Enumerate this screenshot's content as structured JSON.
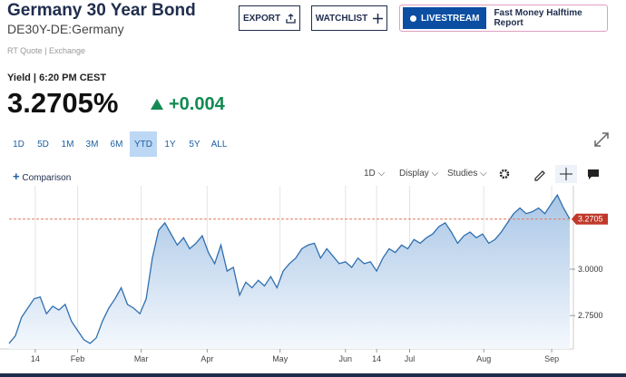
{
  "header": {
    "title": "Germany 30 Year Bond",
    "symbol": "DE30Y-DE:Germany",
    "source": "RT Quote | Exchange"
  },
  "buttons": {
    "export": "EXPORT",
    "watchlist": "WATCHLIST",
    "livestream": "LIVESTREAM",
    "show": "Fast Money Halftime Report"
  },
  "quote": {
    "label": "Yield | 6:20 PM CEST",
    "last": "3.2705%",
    "change": "+0.004"
  },
  "ranges": [
    "1D",
    "5D",
    "1M",
    "3M",
    "6M",
    "YTD",
    "1Y",
    "5Y",
    "ALL"
  ],
  "toolbar": {
    "comparison": "Comparison",
    "interval": "1D",
    "display": "Display",
    "studies": "Studies"
  },
  "chart_data": {
    "type": "area",
    "color": "#2f6fb0",
    "values": [
      2.6,
      2.64,
      2.74,
      2.79,
      2.84,
      2.85,
      2.76,
      2.8,
      2.78,
      2.81,
      2.72,
      2.67,
      2.62,
      2.6,
      2.63,
      2.72,
      2.79,
      2.84,
      2.9,
      2.81,
      2.79,
      2.76,
      2.84,
      3.06,
      3.21,
      3.25,
      3.19,
      3.13,
      3.17,
      3.11,
      3.14,
      3.18,
      3.09,
      3.03,
      3.13,
      2.99,
      3.01,
      2.86,
      2.93,
      2.9,
      2.94,
      2.91,
      2.96,
      2.9,
      2.99,
      3.03,
      3.06,
      3.11,
      3.13,
      3.14,
      3.06,
      3.11,
      3.07,
      3.03,
      3.04,
      3.01,
      3.06,
      3.03,
      3.04,
      2.99,
      3.06,
      3.11,
      3.09,
      3.13,
      3.11,
      3.16,
      3.14,
      3.17,
      3.19,
      3.23,
      3.25,
      3.2,
      3.14,
      3.18,
      3.2,
      3.17,
      3.19,
      3.14,
      3.16,
      3.2,
      3.25,
      3.3,
      3.33,
      3.3,
      3.31,
      3.33,
      3.3,
      3.35,
      3.4,
      3.33,
      3.2705
    ],
    "xlim": [
      0,
      90
    ],
    "xticks": [
      {
        "value": 4.2,
        "label": "14"
      },
      {
        "value": 11,
        "label": "Feb"
      },
      {
        "value": 21.2,
        "label": "Mar"
      },
      {
        "value": 31.8,
        "label": "Apr"
      },
      {
        "value": 43.5,
        "label": "May"
      },
      {
        "value": 54,
        "label": "Jun"
      },
      {
        "value": 59,
        "label": "14"
      },
      {
        "value": 64.3,
        "label": "Jul"
      },
      {
        "value": 76.2,
        "label": "Aug"
      },
      {
        "value": 87.1,
        "label": "Sep"
      }
    ],
    "ylim": [
      2.58,
      3.44
    ],
    "yticks": [
      {
        "value": 2.75,
        "label": "2.7500"
      },
      {
        "value": 3,
        "label": "3.0000"
      }
    ],
    "reference": {
      "value": 3.2705,
      "label": "3.2705"
    }
  }
}
